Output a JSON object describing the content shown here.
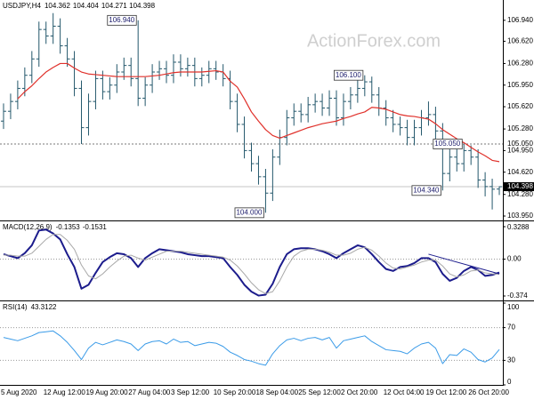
{
  "chart_data": [
    {
      "type": "ohlc",
      "symbol": "USDJPY,H4",
      "watermark": "ActionForex.com",
      "color": "#23576b",
      "categories": [
        "5 Aug 2020",
        null,
        null,
        null,
        null,
        null,
        "12 Aug 12:00",
        null,
        null,
        null,
        null,
        null,
        "19 Aug 20:00",
        null,
        null,
        null,
        null,
        null,
        "27 Aug 04:00",
        null,
        null,
        null,
        null,
        null,
        "3 Sep 12:00",
        null,
        null,
        null,
        null,
        null,
        "10 Sep 20:00",
        null,
        null,
        null,
        null,
        null,
        "18 Sep 04:00",
        null,
        null,
        null,
        null,
        null,
        "25 Sep 12:00",
        null,
        null,
        null,
        null,
        null,
        "2 Oct 20:00",
        null,
        null,
        null,
        null,
        null,
        "12 Oct 04:00",
        null,
        null,
        null,
        null,
        null,
        "19 Oct 12:00",
        null,
        null,
        null,
        null,
        null,
        "26 Oct 20:00",
        null,
        null,
        null,
        null
      ],
      "open": [
        105.4,
        105.55,
        105.7,
        105.9,
        106.1,
        106.35,
        106.8,
        106.7,
        106.85,
        106.55,
        106.35,
        105.9,
        105.3,
        105.7,
        106.05,
        105.85,
        105.95,
        106.15,
        106.25,
        106.05,
        105.75,
        105.95,
        106.15,
        106.2,
        106.1,
        106.3,
        106.2,
        106.25,
        106.05,
        106.1,
        106.2,
        106.15,
        106.05,
        105.7,
        105.35,
        104.95,
        104.75,
        104.55,
        104.3,
        104.85,
        105.15,
        105.45,
        105.55,
        105.5,
        105.65,
        105.7,
        105.6,
        105.75,
        105.45,
        105.7,
        105.8,
        105.9,
        106.0,
        105.8,
        105.6,
        105.45,
        105.35,
        105.3,
        105.15,
        105.3,
        105.45,
        105.5,
        105.25,
        104.6,
        104.85,
        104.75,
        104.95,
        104.85,
        104.5,
        104.4,
        104.362
      ],
      "high": [
        105.67,
        105.82,
        106.02,
        106.22,
        106.47,
        106.92,
        106.92,
        107.05,
        106.97,
        106.67,
        106.47,
        106.02,
        105.82,
        106.17,
        106.17,
        106.07,
        106.27,
        106.37,
        106.37,
        106.94,
        106.07,
        106.27,
        106.32,
        106.32,
        106.42,
        106.42,
        106.37,
        106.37,
        106.22,
        106.32,
        106.32,
        106.27,
        106.17,
        105.82,
        105.47,
        105.07,
        104.87,
        104.67,
        104.97,
        105.27,
        105.57,
        105.67,
        105.67,
        105.77,
        105.82,
        105.82,
        105.87,
        105.87,
        105.82,
        105.92,
        106.02,
        106.1,
        106.08,
        105.92,
        105.72,
        105.57,
        105.47,
        105.42,
        105.42,
        105.57,
        105.7,
        105.62,
        105.37,
        104.97,
        104.97,
        105.05,
        105.03,
        104.97,
        104.62,
        104.52,
        104.404
      ],
      "low": [
        105.28,
        105.43,
        105.58,
        105.78,
        105.98,
        106.23,
        106.58,
        106.58,
        106.43,
        106.23,
        105.78,
        105.05,
        105.18,
        105.58,
        105.73,
        105.73,
        105.83,
        106.03,
        105.93,
        105.63,
        105.63,
        105.83,
        106.03,
        105.98,
        105.98,
        106.08,
        106.08,
        105.93,
        105.93,
        105.98,
        106.03,
        105.93,
        105.58,
        105.23,
        104.83,
        104.63,
        104.43,
        104.0,
        104.18,
        104.73,
        105.03,
        105.33,
        105.38,
        105.38,
        105.53,
        105.48,
        105.48,
        105.33,
        105.33,
        105.58,
        105.68,
        105.78,
        105.68,
        105.48,
        105.33,
        105.23,
        105.18,
        105.03,
        105.03,
        105.18,
        105.33,
        105.13,
        104.34,
        104.48,
        104.63,
        104.63,
        104.73,
        104.38,
        104.25,
        104.05,
        104.271
      ],
      "close": [
        105.55,
        105.7,
        105.9,
        106.1,
        106.35,
        106.8,
        106.7,
        106.85,
        106.55,
        106.35,
        105.9,
        105.3,
        105.7,
        106.05,
        105.85,
        105.95,
        106.15,
        106.25,
        106.05,
        105.75,
        105.95,
        106.15,
        106.2,
        106.1,
        106.3,
        106.2,
        106.25,
        106.05,
        106.1,
        106.2,
        106.15,
        106.05,
        105.7,
        105.35,
        104.95,
        104.75,
        104.55,
        104.3,
        104.85,
        105.15,
        105.45,
        105.55,
        105.5,
        105.65,
        105.7,
        105.6,
        105.75,
        105.45,
        105.7,
        105.8,
        105.9,
        106.0,
        105.8,
        105.6,
        105.45,
        105.35,
        105.3,
        105.15,
        105.3,
        105.45,
        105.5,
        105.25,
        104.6,
        104.85,
        104.75,
        104.95,
        104.85,
        104.5,
        104.4,
        104.36,
        104.398
      ],
      "ma": {
        "color": "#e0312b",
        "values": [
          null,
          null,
          105.74,
          105.85,
          105.94,
          106.05,
          106.15,
          106.22,
          106.28,
          106.28,
          106.21,
          106.15,
          106.12,
          106.11,
          106.1,
          106.09,
          106.08,
          106.08,
          106.08,
          106.08,
          106.08,
          106.09,
          106.1,
          106.12,
          106.14,
          106.15,
          106.15,
          106.15,
          106.15,
          106.16,
          106.17,
          106.15,
          106.01,
          105.92,
          105.74,
          105.54,
          105.4,
          105.27,
          105.18,
          105.14,
          105.18,
          105.22,
          105.26,
          105.3,
          105.33,
          105.36,
          105.38,
          105.4,
          105.44,
          105.47,
          105.51,
          105.54,
          105.61,
          105.6,
          105.58,
          105.54,
          105.5,
          105.48,
          105.47,
          105.45,
          105.43,
          105.36,
          105.27,
          105.2,
          105.13,
          105.07,
          105.0,
          104.93,
          104.87,
          104.8,
          104.78
        ]
      },
      "ylim": [
        103.896,
        107.223
      ],
      "yticks": [
        {
          "value": 106.94,
          "label": "106.940"
        },
        {
          "value": 106.62,
          "label": "106.620"
        },
        {
          "value": 106.28,
          "label": "106.280"
        },
        {
          "value": 105.95,
          "label": "105.950"
        },
        {
          "value": 105.62,
          "label": "105.620"
        },
        {
          "value": 105.28,
          "label": "105.280"
        },
        {
          "value": 104.95,
          "label": "104.950"
        },
        {
          "value": 104.62,
          "label": "104.620"
        },
        {
          "value": 104.28,
          "label": "104.280"
        },
        {
          "value": 103.95,
          "label": "103.950"
        }
      ],
      "hlines": [
        {
          "value": 105.05,
          "label": "105.050",
          "style": "dashed"
        },
        {
          "value": 104.398,
          "label": "104.398",
          "style": "solid",
          "highlight": true
        }
      ],
      "annotations": [
        {
          "x": 19,
          "value": 106.94,
          "label": "106.940"
        },
        {
          "x": 51,
          "value": 106.1,
          "label": "106.100"
        },
        {
          "x": 65,
          "value": 105.05,
          "label": "105.050"
        },
        {
          "x": 62,
          "value": 104.34,
          "label": "104.340"
        },
        {
          "x": 37,
          "value": 104.0,
          "label": "104.000"
        }
      ]
    },
    {
      "type": "line",
      "title": "MACD(12,26,9)",
      "series": [
        {
          "color": "#1c1c8c",
          "width": 2,
          "values": [
            0.05,
            0.03,
            0.01,
            0.06,
            0.14,
            0.29,
            0.3,
            0.26,
            0.2,
            0.05,
            -0.08,
            -0.3,
            -0.26,
            -0.14,
            -0.03,
            0.02,
            0.06,
            0.05,
            0.01,
            -0.08,
            0.01,
            0.06,
            0.1,
            0.09,
            0.08,
            0.07,
            0.05,
            0.04,
            0.03,
            0.03,
            0.02,
            0.01,
            -0.08,
            -0.16,
            -0.26,
            -0.33,
            -0.37,
            -0.36,
            -0.25,
            -0.08,
            0.05,
            0.1,
            0.11,
            0.11,
            0.1,
            0.08,
            0.05,
            0.01,
            0.06,
            0.1,
            0.14,
            0.12,
            0.05,
            -0.03,
            -0.1,
            -0.12,
            -0.08,
            -0.07,
            -0.04,
            0.01,
            0.01,
            -0.03,
            -0.15,
            -0.22,
            -0.19,
            -0.12,
            -0.08,
            -0.11,
            -0.17,
            -0.16,
            -0.1353
          ]
        },
        {
          "color": "#a8a8a8",
          "width": 1,
          "values": [
            0.04,
            0.04,
            0.03,
            0.03,
            0.06,
            0.13,
            0.2,
            0.25,
            0.25,
            0.19,
            0.1,
            -0.06,
            -0.17,
            -0.2,
            -0.15,
            -0.08,
            -0.02,
            0.03,
            0.04,
            0.01,
            -0.01,
            0.02,
            0.05,
            0.08,
            0.08,
            0.08,
            0.07,
            0.06,
            0.05,
            0.04,
            0.03,
            0.02,
            -0.01,
            -0.07,
            -0.15,
            -0.24,
            -0.31,
            -0.35,
            -0.33,
            -0.22,
            -0.08,
            0.03,
            0.08,
            0.1,
            0.1,
            0.09,
            0.07,
            0.04,
            0.04,
            0.06,
            0.1,
            0.12,
            0.09,
            0.03,
            -0.04,
            -0.09,
            -0.1,
            -0.08,
            -0.06,
            -0.03,
            -0.01,
            -0.01,
            -0.07,
            -0.15,
            -0.18,
            -0.16,
            -0.12,
            -0.11,
            -0.14,
            -0.15,
            -0.1531
          ]
        }
      ],
      "ylim": [
        -0.41,
        0.365
      ],
      "yticks": [
        0.3288,
        {
          "value": 0,
          "label": "0.00"
        },
        -0.374
      ],
      "levels": [
        0
      ],
      "trendline": {
        "color": "#1c1c8c",
        "x": [
          60,
          70
        ],
        "values": [
          0.05,
          -0.15
        ]
      }
    },
    {
      "type": "line",
      "title": "RSI(14)",
      "series": [
        {
          "color": "#3a9be8",
          "width": 1,
          "values": [
            58,
            56,
            54,
            57,
            60,
            64,
            65,
            66,
            60,
            52,
            42,
            31,
            45,
            52,
            49,
            52,
            55,
            53,
            50,
            42,
            50,
            53,
            54,
            50,
            56,
            52,
            53,
            48,
            50,
            52,
            51,
            47,
            40,
            36,
            31,
            29,
            26,
            24,
            38,
            48,
            55,
            57,
            54,
            57,
            58,
            55,
            58,
            45,
            54,
            56,
            58,
            60,
            53,
            48,
            43,
            42,
            41,
            38,
            45,
            50,
            52,
            45,
            26,
            37,
            36,
            44,
            40,
            31,
            28,
            33,
            43.3122
          ]
        }
      ],
      "ylim": [
        0,
        100
      ],
      "yticks": [
        100,
        70,
        30,
        0
      ],
      "levels": [
        70,
        30
      ]
    }
  ]
}
